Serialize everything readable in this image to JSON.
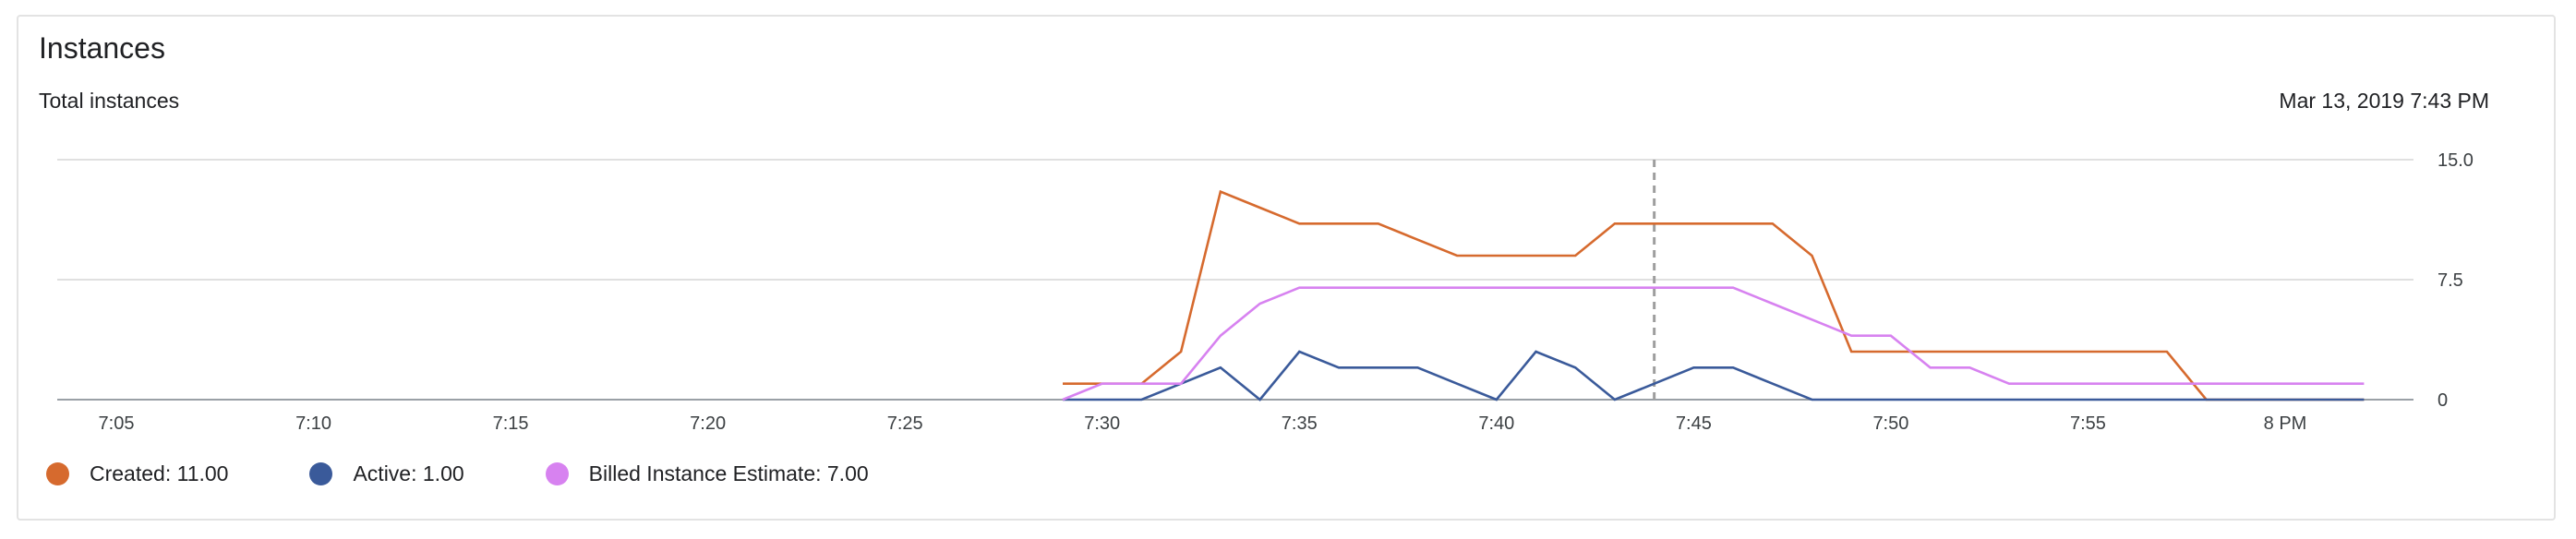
{
  "card": {
    "title": "Instances",
    "subtitle": "Total instances",
    "timestamp": "Mar 13, 2019 7:43 PM"
  },
  "legend": [
    {
      "label": "Created: 11.00",
      "color": "#d66a2e"
    },
    {
      "label": "Active: 1.00",
      "color": "#3a5a9a"
    },
    {
      "label": "Billed Instance Estimate: 7.00",
      "color": "#d782f0"
    }
  ],
  "chart_data": {
    "type": "line",
    "xlabel": "",
    "ylabel": "",
    "ylim": [
      0,
      15
    ],
    "yticks": [
      {
        "value": 15,
        "label": "15.0"
      },
      {
        "value": 7.5,
        "label": "7.5"
      },
      {
        "value": 0,
        "label": "0"
      }
    ],
    "xlim": [
      303,
      371
    ],
    "xticks": [
      {
        "value": 305,
        "label": "7:05"
      },
      {
        "value": 310,
        "label": "7:10"
      },
      {
        "value": 315,
        "label": "7:15"
      },
      {
        "value": 320,
        "label": "7:20"
      },
      {
        "value": 325,
        "label": "7:25"
      },
      {
        "value": 330,
        "label": "7:30"
      },
      {
        "value": 335,
        "label": "7:35"
      },
      {
        "value": 340,
        "label": "7:40"
      },
      {
        "value": 345,
        "label": "7:45"
      },
      {
        "value": 350,
        "label": "7:50"
      },
      {
        "value": 355,
        "label": "7:55"
      },
      {
        "value": 360,
        "label": "8 PM"
      }
    ],
    "cursor_x": 344,
    "grid": true,
    "legend_position": "bottom-left",
    "series": [
      {
        "name": "Created",
        "color": "#d66a2e",
        "x": [
          329,
          330,
          331,
          332,
          333,
          334,
          335,
          336,
          337,
          338,
          339,
          340,
          341,
          342,
          343,
          344,
          345,
          346,
          347,
          348,
          349,
          350,
          351,
          352,
          353,
          354,
          355,
          356,
          357,
          358,
          359,
          360,
          361,
          362
        ],
        "y": [
          1,
          1,
          1,
          3,
          13,
          12,
          11,
          11,
          11,
          10,
          9,
          9,
          9,
          9,
          11,
          11,
          11,
          11,
          11,
          9,
          3,
          3,
          3,
          3,
          3,
          3,
          3,
          3,
          3,
          0,
          0,
          0,
          0,
          0
        ]
      },
      {
        "name": "Active",
        "color": "#3a5a9a",
        "x": [
          329,
          330,
          331,
          332,
          333,
          334,
          335,
          336,
          337,
          338,
          339,
          340,
          341,
          342,
          343,
          344,
          345,
          346,
          347,
          348,
          349,
          350,
          351,
          352,
          353,
          354,
          355,
          356,
          357,
          358,
          359,
          360,
          361,
          362
        ],
        "y": [
          0,
          0,
          0,
          1,
          2,
          0,
          3,
          2,
          2,
          2,
          1,
          0,
          3,
          2,
          0,
          1,
          2,
          2,
          1,
          0,
          0,
          0,
          0,
          0,
          0,
          0,
          0,
          0,
          0,
          0,
          0,
          0,
          0,
          0
        ]
      },
      {
        "name": "Billed Instance Estimate",
        "color": "#d782f0",
        "x": [
          329,
          330,
          331,
          332,
          333,
          334,
          335,
          336,
          337,
          338,
          339,
          340,
          341,
          342,
          343,
          344,
          345,
          346,
          347,
          348,
          349,
          350,
          351,
          352,
          353,
          354,
          355,
          356,
          357,
          358,
          359,
          360,
          361,
          362
        ],
        "y": [
          0,
          1,
          1,
          1,
          4,
          6,
          7,
          7,
          7,
          7,
          7,
          7,
          7,
          7,
          7,
          7,
          7,
          7,
          6,
          5,
          4,
          4,
          2,
          2,
          1,
          1,
          1,
          1,
          1,
          1,
          1,
          1,
          1,
          1
        ]
      }
    ]
  }
}
